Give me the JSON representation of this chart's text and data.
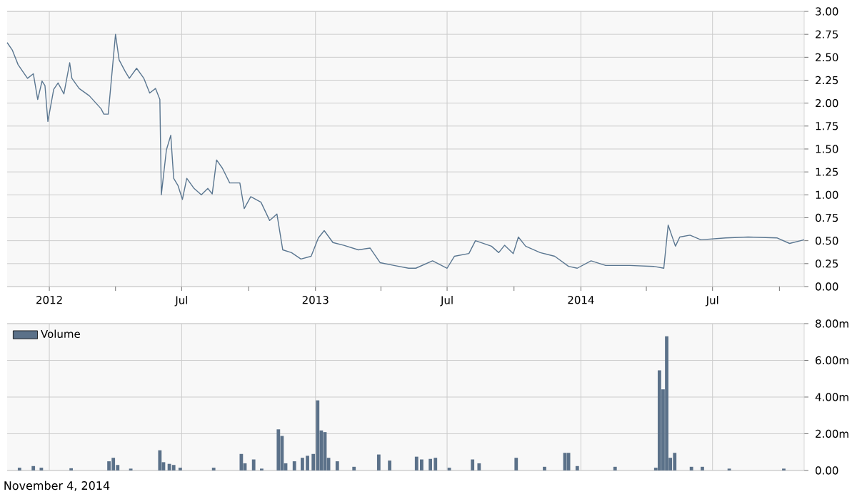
{
  "chart_data": [
    {
      "type": "line",
      "color": "#5a7690",
      "grid": true,
      "xlim": [
        "2011-11-04",
        "2014-11-04"
      ],
      "xticks": [
        {
          "value": "2012-01-01",
          "label": "2012"
        },
        {
          "value": "2012-04-01",
          "label": null
        },
        {
          "value": "2012-07-01",
          "label": "Jul"
        },
        {
          "value": "2012-10-01",
          "label": null
        },
        {
          "value": "2013-01-01",
          "label": "2013"
        },
        {
          "value": "2013-04-01",
          "label": null
        },
        {
          "value": "2013-07-01",
          "label": "Jul"
        },
        {
          "value": "2013-10-01",
          "label": null
        },
        {
          "value": "2014-01-01",
          "label": "2014"
        },
        {
          "value": "2014-04-01",
          "label": null
        },
        {
          "value": "2014-07-01",
          "label": "Jul"
        },
        {
          "value": "2014-10-01",
          "label": null
        }
      ],
      "ylim": [
        0,
        3
      ],
      "yticks": [
        {
          "value": 0,
          "label": "0.00"
        },
        {
          "value": 0.25,
          "label": "0.25"
        },
        {
          "value": 0.5,
          "label": "0.50"
        },
        {
          "value": 0.75,
          "label": "0.75"
        },
        {
          "value": 1,
          "label": "1.00"
        },
        {
          "value": 1.25,
          "label": "1.25"
        },
        {
          "value": 1.5,
          "label": "1.50"
        },
        {
          "value": 1.75,
          "label": "1.75"
        },
        {
          "value": 2,
          "label": "2.00"
        },
        {
          "value": 2.25,
          "label": "2.25"
        },
        {
          "value": 2.5,
          "label": "2.50"
        },
        {
          "value": 2.75,
          "label": "2.75"
        },
        {
          "value": 3,
          "label": "3.00"
        }
      ],
      "x": [
        "2011-11-04",
        "2011-11-11",
        "2011-11-19",
        "2011-11-25",
        "2011-12-02",
        "2011-12-10",
        "2011-12-16",
        "2011-12-22",
        "2011-12-26",
        "2011-12-30",
        "2012-01-07",
        "2012-01-13",
        "2012-01-21",
        "2012-01-29",
        "2012-02-01",
        "2012-02-11",
        "2012-02-25",
        "2012-03-12",
        "2012-03-16",
        "2012-03-22",
        "2012-04-01",
        "2012-04-06",
        "2012-04-14",
        "2012-04-20",
        "2012-04-30",
        "2012-05-10",
        "2012-05-18",
        "2012-05-26",
        "2012-06-01",
        "2012-06-03",
        "2012-06-10",
        "2012-06-16",
        "2012-06-20",
        "2012-06-26",
        "2012-07-02",
        "2012-07-08",
        "2012-07-18",
        "2012-07-28",
        "2012-08-06",
        "2012-08-12",
        "2012-08-18",
        "2012-08-26",
        "2012-09-05",
        "2012-09-19",
        "2012-09-25",
        "2012-10-04",
        "2012-10-18",
        "2012-10-30",
        "2012-11-09",
        "2012-11-17",
        "2012-11-29",
        "2012-12-12",
        "2012-12-26",
        "2013-01-05",
        "2013-01-13",
        "2013-01-25",
        "2013-02-09",
        "2013-03-01",
        "2013-03-17",
        "2013-03-31",
        "2013-04-19",
        "2013-05-09",
        "2013-05-19",
        "2013-06-11",
        "2013-07-01",
        "2013-07-11",
        "2013-07-31",
        "2013-08-09",
        "2013-08-31",
        "2013-09-10",
        "2013-09-18",
        "2013-09-30",
        "2013-10-07",
        "2013-10-17",
        "2013-11-06",
        "2013-11-26",
        "2013-12-15",
        "2013-12-27",
        "2014-01-15",
        "2014-02-04",
        "2014-03-09",
        "2014-04-11",
        "2014-04-25",
        "2014-05-01",
        "2014-05-11",
        "2014-05-17",
        "2014-05-31",
        "2014-06-15",
        "2014-07-19",
        "2014-08-19",
        "2014-09-28",
        "2014-10-15",
        "2014-11-04"
      ],
      "values": [
        2.66,
        2.58,
        2.42,
        2.35,
        2.27,
        2.32,
        2.04,
        2.24,
        2.19,
        1.8,
        2.15,
        2.22,
        2.1,
        2.44,
        2.27,
        2.16,
        2.08,
        1.94,
        1.88,
        1.88,
        2.75,
        2.47,
        2.35,
        2.27,
        2.38,
        2.27,
        2.11,
        2.16,
        2.04,
        1.0,
        1.49,
        1.65,
        1.18,
        1.1,
        0.95,
        1.18,
        1.07,
        1.0,
        1.07,
        1.01,
        1.38,
        1.29,
        1.13,
        1.13,
        0.85,
        0.98,
        0.92,
        0.72,
        0.79,
        0.4,
        0.37,
        0.3,
        0.33,
        0.53,
        0.61,
        0.48,
        0.45,
        0.4,
        0.42,
        0.26,
        0.23,
        0.2,
        0.2,
        0.28,
        0.2,
        0.33,
        0.36,
        0.5,
        0.44,
        0.37,
        0.45,
        0.36,
        0.54,
        0.44,
        0.37,
        0.33,
        0.22,
        0.2,
        0.28,
        0.23,
        0.23,
        0.22,
        0.2,
        0.67,
        0.44,
        0.54,
        0.56,
        0.51,
        0.53,
        0.54,
        0.53,
        0.47,
        0.51
      ]
    },
    {
      "type": "bar",
      "grid": true,
      "legend": "top left",
      "tick_labels": "y",
      "xlim": [
        "2011-11-04",
        "2014-11-04"
      ],
      "xticks": [
        {
          "value": "2012-01-01",
          "label": null
        },
        {
          "value": "2012-07-01",
          "label": null
        },
        {
          "value": "2013-01-01",
          "label": null
        },
        {
          "value": "2013-07-01",
          "label": null
        },
        {
          "value": "2014-01-01",
          "label": null
        },
        {
          "value": "2014-07-01",
          "label": null
        }
      ],
      "ylim": [
        0,
        8
      ],
      "yticks": [
        {
          "value": 0,
          "label": "0.00"
        },
        {
          "value": 2,
          "label": "2.00m"
        },
        {
          "value": 4,
          "label": "4.00m"
        },
        {
          "value": 6,
          "label": "6.00m"
        },
        {
          "value": 8,
          "label": "8.00m"
        }
      ],
      "x": [
        "2011-11-21",
        "2011-12-10",
        "2011-12-21",
        "2012-01-31",
        "2012-03-23",
        "2012-03-29",
        "2012-04-04",
        "2012-04-22",
        "2012-06-01",
        "2012-06-06",
        "2012-06-14",
        "2012-06-20",
        "2012-06-29",
        "2012-08-14",
        "2012-09-21",
        "2012-09-26",
        "2012-10-08",
        "2012-10-19",
        "2012-11-11",
        "2012-11-16",
        "2012-11-21",
        "2012-12-03",
        "2012-12-14",
        "2012-12-21",
        "2012-12-29",
        "2013-01-04",
        "2013-01-09",
        "2013-01-14",
        "2013-01-19",
        "2013-01-31",
        "2013-02-23",
        "2013-03-29",
        "2013-04-13",
        "2013-05-20",
        "2013-05-27",
        "2013-06-08",
        "2013-06-15",
        "2013-07-04",
        "2013-08-05",
        "2013-08-14",
        "2013-10-04",
        "2013-11-12",
        "2013-12-10",
        "2013-12-15",
        "2013-12-27",
        "2014-02-17",
        "2014-04-14",
        "2014-04-19",
        "2014-04-24",
        "2014-04-29",
        "2014-05-04",
        "2014-05-10",
        "2014-06-02",
        "2014-06-17",
        "2014-07-24",
        "2014-10-07"
      ],
      "series": [
        {
          "name": "Volume",
          "color": "#5b7189",
          "values": [
            0.15,
            0.24,
            0.15,
            0.12,
            0.5,
            0.69,
            0.3,
            0.1,
            1.1,
            0.45,
            0.36,
            0.3,
            0.15,
            0.15,
            0.9,
            0.39,
            0.6,
            0.1,
            2.24,
            1.88,
            0.39,
            0.5,
            0.69,
            0.8,
            0.9,
            3.82,
            2.18,
            2.09,
            0.69,
            0.5,
            0.2,
            0.87,
            0.54,
            0.75,
            0.6,
            0.63,
            0.69,
            0.15,
            0.6,
            0.39,
            0.69,
            0.2,
            0.96,
            0.96,
            0.24,
            0.2,
            0.15,
            5.46,
            4.42,
            7.31,
            0.69,
            0.96,
            0.2,
            0.2,
            0.1,
            0.1
          ]
        }
      ],
      "annotations": [
        "November 4, 2014"
      ]
    }
  ]
}
